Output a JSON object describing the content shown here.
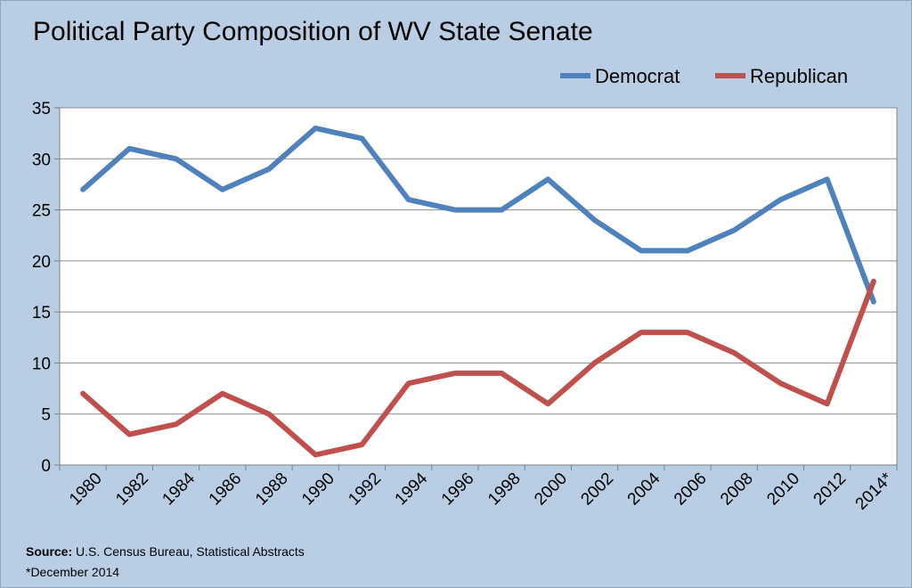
{
  "chart_data": {
    "type": "line",
    "title": "Political Party Composition of WV State Senate",
    "categories": [
      "1980",
      "1982",
      "1984",
      "1986",
      "1988",
      "1990",
      "1992",
      "1994",
      "1996",
      "1998",
      "2000",
      "2002",
      "2004",
      "2006",
      "2008",
      "2010",
      "2012",
      "2014*"
    ],
    "series": [
      {
        "name": "Democrat",
        "color": "#4f81bd",
        "values": [
          27,
          31,
          30,
          27,
          29,
          33,
          32,
          26,
          25,
          25,
          28,
          24,
          21,
          21,
          23,
          26,
          28,
          16
        ]
      },
      {
        "name": "Republican",
        "color": "#c0504d",
        "values": [
          7,
          3,
          4,
          7,
          5,
          1,
          2,
          8,
          9,
          9,
          6,
          10,
          13,
          13,
          11,
          8,
          6,
          18
        ]
      }
    ],
    "ylim": [
      0,
      35
    ],
    "yticks": [
      0,
      5,
      10,
      15,
      20,
      25,
      30,
      35
    ],
    "grid": true,
    "legend": "top-right"
  },
  "notes": {
    "source_label": "Source:",
    "source_text": " U.S. Census Bureau, Statistical Abstracts",
    "footnote": "*December 2014"
  }
}
